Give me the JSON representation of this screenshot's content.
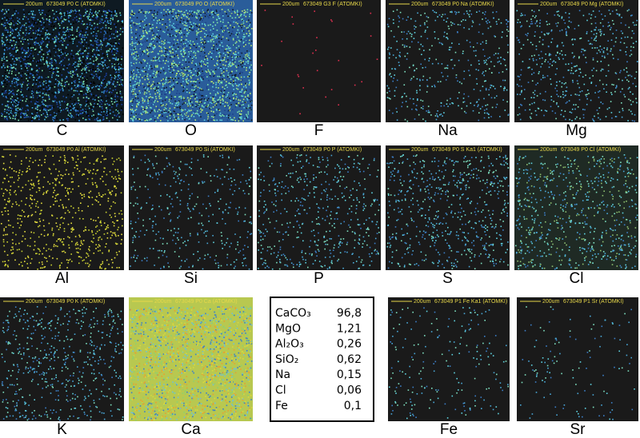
{
  "panels": [
    {
      "header": {
        "scale": "200um",
        "id": "673049 P0 C (ATOMKI)"
      },
      "label": "C"
    },
    {
      "header": {
        "scale": "200um",
        "id": "673049 P0 O (ATOMKI)"
      },
      "label": "O"
    },
    {
      "header": {
        "scale": "200um",
        "id": "673049 G3 F (ATOMKI)"
      },
      "label": "F"
    },
    {
      "header": {
        "scale": "200um",
        "id": "673049 P0 Na (ATOMKI)"
      },
      "label": "Na"
    },
    {
      "header": {
        "scale": "200um",
        "id": "673049 P0 Mg (ATOMKI)"
      },
      "label": "Mg"
    },
    {
      "header": {
        "scale": "200um",
        "id": "673049 P0 Al (ATOMKI)"
      },
      "label": "Al"
    },
    {
      "header": {
        "scale": "200um",
        "id": "673049 P0 Si (ATOMKI)"
      },
      "label": "Si"
    },
    {
      "header": {
        "scale": "200um",
        "id": "673049 P0 P (ATOMKI)"
      },
      "label": "P"
    },
    {
      "header": {
        "scale": "200um",
        "id": "673049 P0 S Ka1 (ATOMKI)"
      },
      "label": "S"
    },
    {
      "header": {
        "scale": "200um",
        "id": "673049 P0 Cl (ATOMKI)"
      },
      "label": "Cl"
    },
    {
      "header": {
        "scale": "200um",
        "id": "673049 P0 K (ATOMKI)"
      },
      "label": "K"
    },
    {
      "header": {
        "scale": "200um",
        "id": "673049 P0 Ca (ATOMKI)"
      },
      "label": "Ca"
    },
    {
      "header": {
        "scale": "200um",
        "id": "673049 P1 Fe Ka1 (ATOMKI)"
      },
      "label": "Fe"
    },
    {
      "header": {
        "scale": "200um",
        "id": "673049 P1 Sr (ATOMKI)"
      },
      "label": "Sr"
    }
  ],
  "table": {
    "rows": [
      [
        "CaCO₃",
        "96,8"
      ],
      [
        "MgO",
        "1,21"
      ],
      [
        "Al₂O₃",
        "0,26"
      ],
      [
        "SiO₂",
        "0,62"
      ],
      [
        "Na",
        "0,15"
      ],
      [
        "Cl",
        "0,06"
      ],
      [
        "Fe",
        "0,1"
      ]
    ]
  }
}
